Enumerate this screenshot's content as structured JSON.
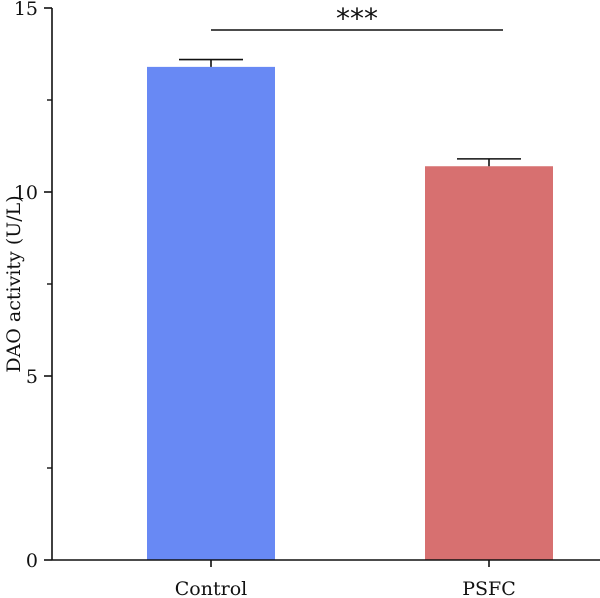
{
  "chart_data": {
    "type": "bar",
    "categories": [
      "Control",
      "PSFC"
    ],
    "values": [
      13.4,
      10.7
    ],
    "errors": [
      0.2,
      0.2
    ],
    "colors": [
      "#6889f4",
      "#d77070"
    ],
    "ylabel": "DAO activity (U/L)",
    "xlabel": "",
    "title": "",
    "ylim": [
      0,
      15
    ],
    "yticks": [
      0,
      5,
      10,
      15
    ],
    "yticks_minor": [
      2.5,
      7.5,
      12.5
    ],
    "grid": false,
    "significance": {
      "between": [
        0,
        1
      ],
      "label": "***"
    }
  }
}
